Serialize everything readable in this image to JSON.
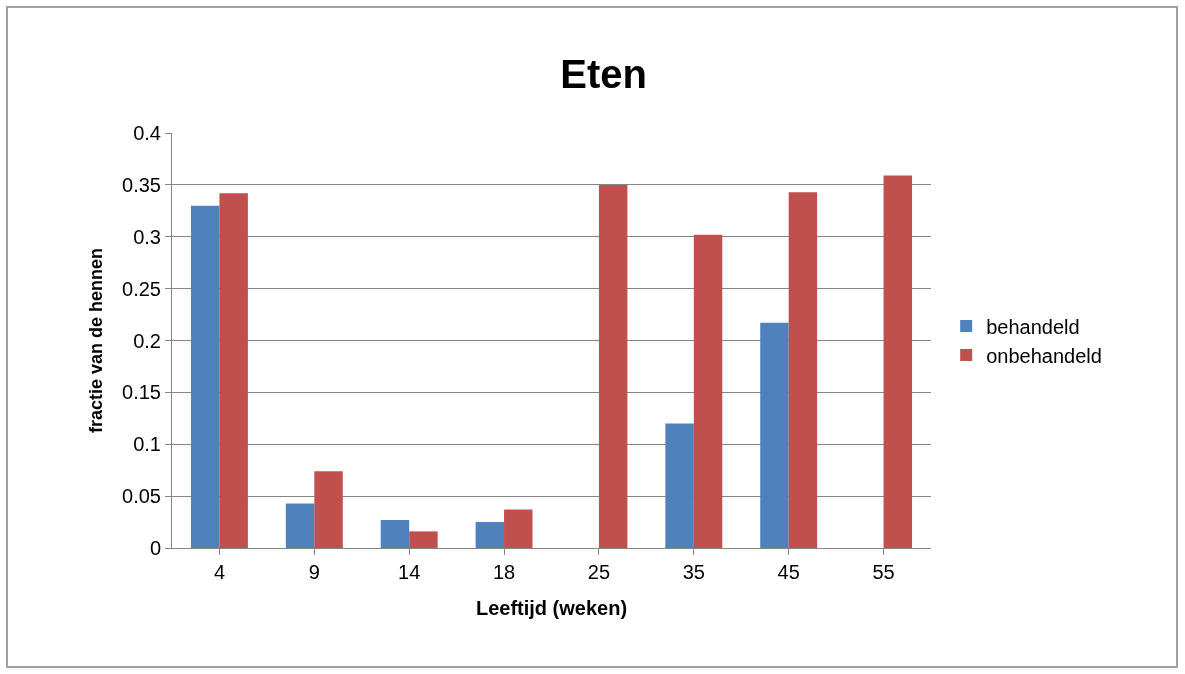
{
  "chart_data": {
    "type": "bar",
    "title": "Eten",
    "xlabel": "Leeftijd (weken)",
    "ylabel": "fractie van de hennen",
    "categories": [
      "4",
      "9",
      "14",
      "18",
      "25",
      "35",
      "45",
      "55"
    ],
    "series": [
      {
        "name": "behandeld",
        "color": "#4f81bd",
        "values": [
          0.33,
          0.043,
          0.027,
          0.025,
          0,
          0.12,
          0.217,
          0
        ]
      },
      {
        "name": "onbehandeld",
        "color": "#c0504d",
        "values": [
          0.342,
          0.074,
          0.016,
          0.037,
          0.35,
          0.302,
          0.343,
          0.359
        ]
      }
    ],
    "ylim": [
      0,
      0.4
    ],
    "yticks": [
      {
        "value": 0,
        "label": "0"
      },
      0.05,
      0.1,
      0.15,
      0.2,
      0.25,
      0.3,
      0.35,
      0.4
    ],
    "grid": "y",
    "legend": "right"
  }
}
